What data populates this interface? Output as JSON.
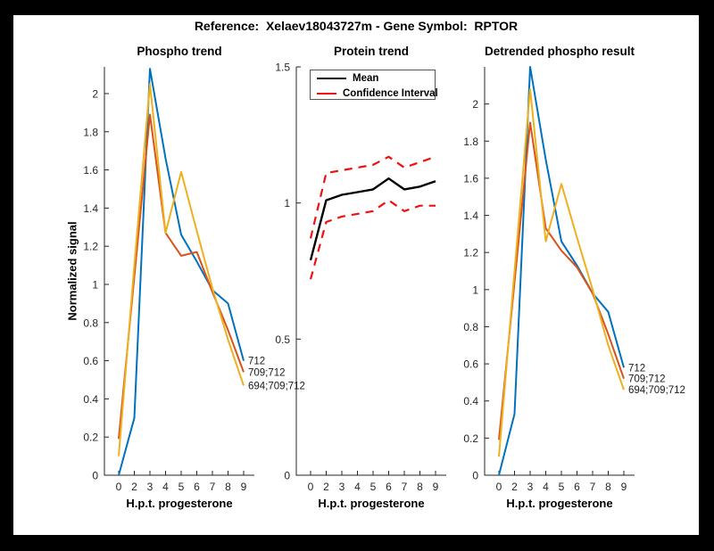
{
  "figure_title": "Reference:  Xelaev18043727m - Gene Symbol:  RPTOR",
  "colors": {
    "blue": "#0072BD",
    "orange": "#D95319",
    "yellow": "#EDB120",
    "ci_red": "#EE1111",
    "mean_black": "#000000",
    "axis": "#262626"
  },
  "chart_data": [
    {
      "type": "line",
      "title": "Phospho trend",
      "xlabel": "H.p.t. progesterone",
      "ylabel": "Normalized signal",
      "x_tick_labels": [
        "0",
        "2",
        "3",
        "4",
        "5",
        "6",
        "7",
        "8",
        "9"
      ],
      "ylim": [
        0,
        2.14
      ],
      "yticks": [
        0,
        0.2,
        0.4,
        0.6,
        0.8,
        1,
        1.2,
        1.4,
        1.6,
        1.8,
        2
      ],
      "ytick_labels": [
        "0",
        "0.2",
        "0.4",
        "0.6",
        "0.8",
        "1",
        "1.2",
        "1.4",
        "1.6",
        "1.8",
        "2"
      ],
      "grid": false,
      "show_end_labels": true,
      "series": [
        {
          "name": "712",
          "color_key": "blue",
          "style": "solid",
          "width": 2,
          "values": [
            0.0,
            0.3,
            2.13,
            1.66,
            1.26,
            1.12,
            0.97,
            0.9,
            0.6
          ]
        },
        {
          "name": "709;712",
          "color_key": "orange",
          "style": "solid",
          "width": 2,
          "values": [
            0.19,
            1.04,
            1.89,
            1.27,
            1.15,
            1.17,
            0.96,
            0.76,
            0.54
          ]
        },
        {
          "name": "694;709;712",
          "color_key": "yellow",
          "style": "solid",
          "width": 2,
          "values": [
            0.1,
            1.1,
            2.05,
            1.27,
            1.59,
            1.28,
            0.98,
            0.71,
            0.47
          ]
        }
      ]
    },
    {
      "type": "line",
      "title": "Protein trend",
      "xlabel": "H.p.t. progesterone",
      "ylabel": "",
      "x_tick_labels": [
        "0",
        "2",
        "3",
        "4",
        "5",
        "6",
        "7",
        "8",
        "9"
      ],
      "ylim": [
        0,
        1.5
      ],
      "yticks": [
        0,
        0.5,
        1,
        1.5
      ],
      "ytick_labels": [
        "0",
        "0.5",
        "1",
        "1.5"
      ],
      "grid": false,
      "show_end_labels": false,
      "legend": {
        "mean": "Mean",
        "ci": "Confidence Interval",
        "position": "north inside"
      },
      "series": [
        {
          "name": "Mean",
          "color_key": "mean_black",
          "style": "solid",
          "width": 2.4,
          "values": [
            0.79,
            1.01,
            1.03,
            1.04,
            1.05,
            1.09,
            1.05,
            1.06,
            1.08
          ]
        },
        {
          "name": "CI upper",
          "color_key": "ci_red",
          "style": "dashed",
          "width": 2.2,
          "values": [
            0.87,
            1.11,
            1.12,
            1.13,
            1.14,
            1.17,
            1.13,
            1.15,
            1.17
          ]
        },
        {
          "name": "CI lower",
          "color_key": "ci_red",
          "style": "dashed",
          "width": 2.2,
          "values": [
            0.72,
            0.93,
            0.95,
            0.96,
            0.97,
            1.01,
            0.97,
            0.99,
            0.99
          ]
        }
      ]
    },
    {
      "type": "line",
      "title": "Detrended phospho result",
      "xlabel": "H.p.t. progesterone",
      "ylabel": "",
      "x_tick_labels": [
        "0",
        "2",
        "3",
        "4",
        "5",
        "6",
        "7",
        "8",
        "9"
      ],
      "ylim": [
        0,
        2.2
      ],
      "yticks": [
        0,
        0.2,
        0.4,
        0.6,
        0.8,
        1,
        1.2,
        1.4,
        1.6,
        1.8,
        2
      ],
      "ytick_labels": [
        "0",
        "0.2",
        "0.4",
        "0.6",
        "0.8",
        "1",
        "1.2",
        "1.4",
        "1.6",
        "1.8",
        "2"
      ],
      "grid": false,
      "show_end_labels": true,
      "series": [
        {
          "name": "712",
          "color_key": "blue",
          "style": "solid",
          "width": 2,
          "values": [
            0.0,
            0.33,
            2.2,
            1.7,
            1.26,
            1.13,
            0.98,
            0.88,
            0.58
          ]
        },
        {
          "name": "709;712",
          "color_key": "orange",
          "style": "solid",
          "width": 2,
          "values": [
            0.19,
            1.04,
            1.9,
            1.33,
            1.21,
            1.12,
            0.98,
            0.76,
            0.52
          ]
        },
        {
          "name": "694;709;712",
          "color_key": "yellow",
          "style": "solid",
          "width": 2,
          "values": [
            0.1,
            1.1,
            2.08,
            1.26,
            1.57,
            1.28,
            1.0,
            0.7,
            0.46
          ]
        }
      ]
    }
  ]
}
